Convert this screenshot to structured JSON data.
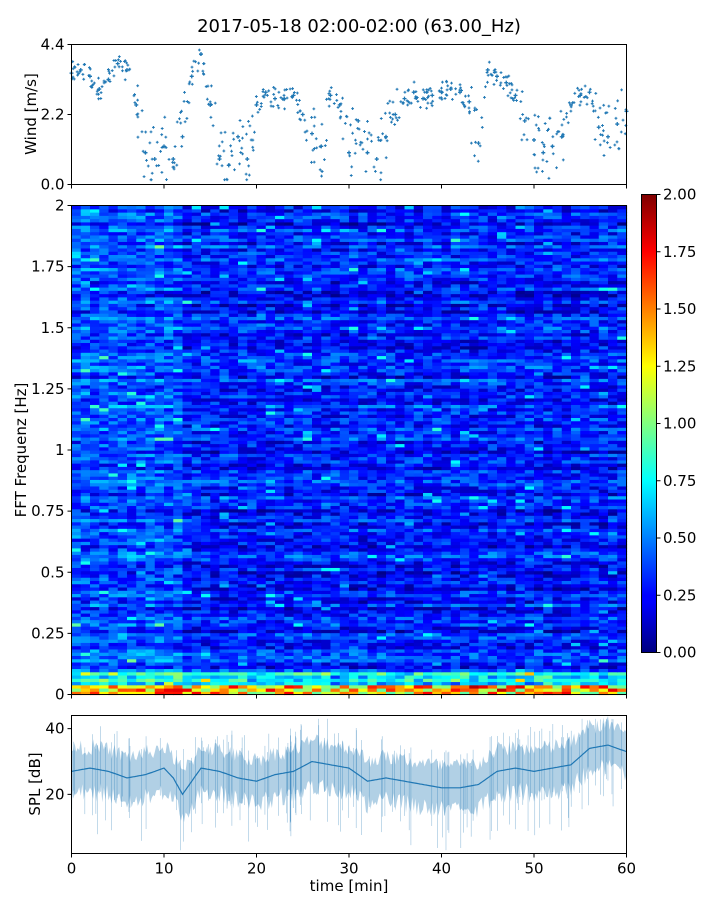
{
  "chart_data": [
    {
      "type": "scatter",
      "title": "2017-05-18 02:00-02:00 (63.00_Hz)",
      "xlabel": "",
      "ylabel": "Wind [m/s]",
      "xlim": [
        0,
        60
      ],
      "ylim": [
        0,
        4.4
      ],
      "yticks": [
        "0.0",
        "2.2",
        "4.4"
      ],
      "marker_color": "#1f77b4",
      "x": [
        0,
        1,
        2,
        3,
        4,
        5,
        6,
        7,
        8,
        9,
        10,
        11,
        12,
        13,
        14,
        15,
        16,
        17,
        18,
        19,
        20,
        21,
        22,
        23,
        24,
        25,
        26,
        27,
        28,
        29,
        30,
        31,
        32,
        33,
        34,
        35,
        36,
        37,
        38,
        39,
        40,
        41,
        42,
        43,
        44,
        45,
        46,
        47,
        48,
        49,
        50,
        51,
        52,
        53,
        54,
        55,
        56,
        57,
        58,
        59,
        60
      ],
      "y": [
        3.5,
        3.6,
        3.4,
        3.0,
        3.3,
        3.8,
        3.6,
        2.5,
        1.0,
        0.8,
        1.2,
        0.8,
        1.5,
        3.4,
        4.1,
        2.5,
        0.8,
        0.6,
        1.5,
        0.8,
        2.5,
        2.9,
        2.7,
        2.7,
        2.8,
        2.2,
        1.6,
        1.2,
        2.8,
        2.5,
        1.0,
        2.0,
        1.0,
        0.8,
        1.5,
        2.2,
        2.7,
        2.9,
        2.7,
        2.8,
        2.9,
        3.0,
        2.9,
        2.6,
        1.3,
        3.6,
        3.4,
        3.2,
        2.8,
        2.0,
        1.4,
        1.0,
        1.2,
        1.5,
        2.5,
        2.8,
        2.9,
        1.8,
        1.5,
        1.9,
        2.3
      ]
    },
    {
      "type": "heatmap",
      "xlabel": "",
      "ylabel": "FFT Frequenz [Hz]",
      "xlim": [
        0,
        60
      ],
      "ylim": [
        0,
        2
      ],
      "yticks": [
        "0",
        "0.25",
        "0.5",
        "0.75",
        "1",
        "1.25",
        "1.5",
        "1.75",
        "2"
      ],
      "colormap": "jet",
      "colorbar": {
        "min": 0.0,
        "max": 2.0,
        "ticks": [
          "0.00",
          "0.25",
          "0.50",
          "0.75",
          "1.00",
          "1.25",
          "1.50",
          "1.75",
          "2.00"
        ]
      },
      "typical_value": 0.3
    },
    {
      "type": "line",
      "xlabel": "time [min]",
      "ylabel": "SPL [dB]",
      "xlim": [
        0,
        60
      ],
      "ylim": [
        2,
        44
      ],
      "xticks": [
        "0",
        "10",
        "20",
        "30",
        "40",
        "50",
        "60"
      ],
      "yticks": [
        "20",
        "40"
      ],
      "line_color": "#1f77b4",
      "x": [
        0,
        2,
        4,
        6,
        8,
        10,
        11,
        12,
        14,
        16,
        18,
        20,
        22,
        24,
        26,
        28,
        30,
        32,
        34,
        36,
        38,
        40,
        42,
        44,
        46,
        48,
        50,
        52,
        54,
        56,
        58,
        60
      ],
      "y": [
        27,
        28,
        27,
        25,
        26,
        28,
        25,
        20,
        28,
        27,
        25,
        24,
        26,
        27,
        30,
        29,
        28,
        24,
        25,
        24,
        23,
        22,
        22,
        23,
        27,
        28,
        27,
        28,
        29,
        34,
        35,
        33
      ]
    }
  ]
}
